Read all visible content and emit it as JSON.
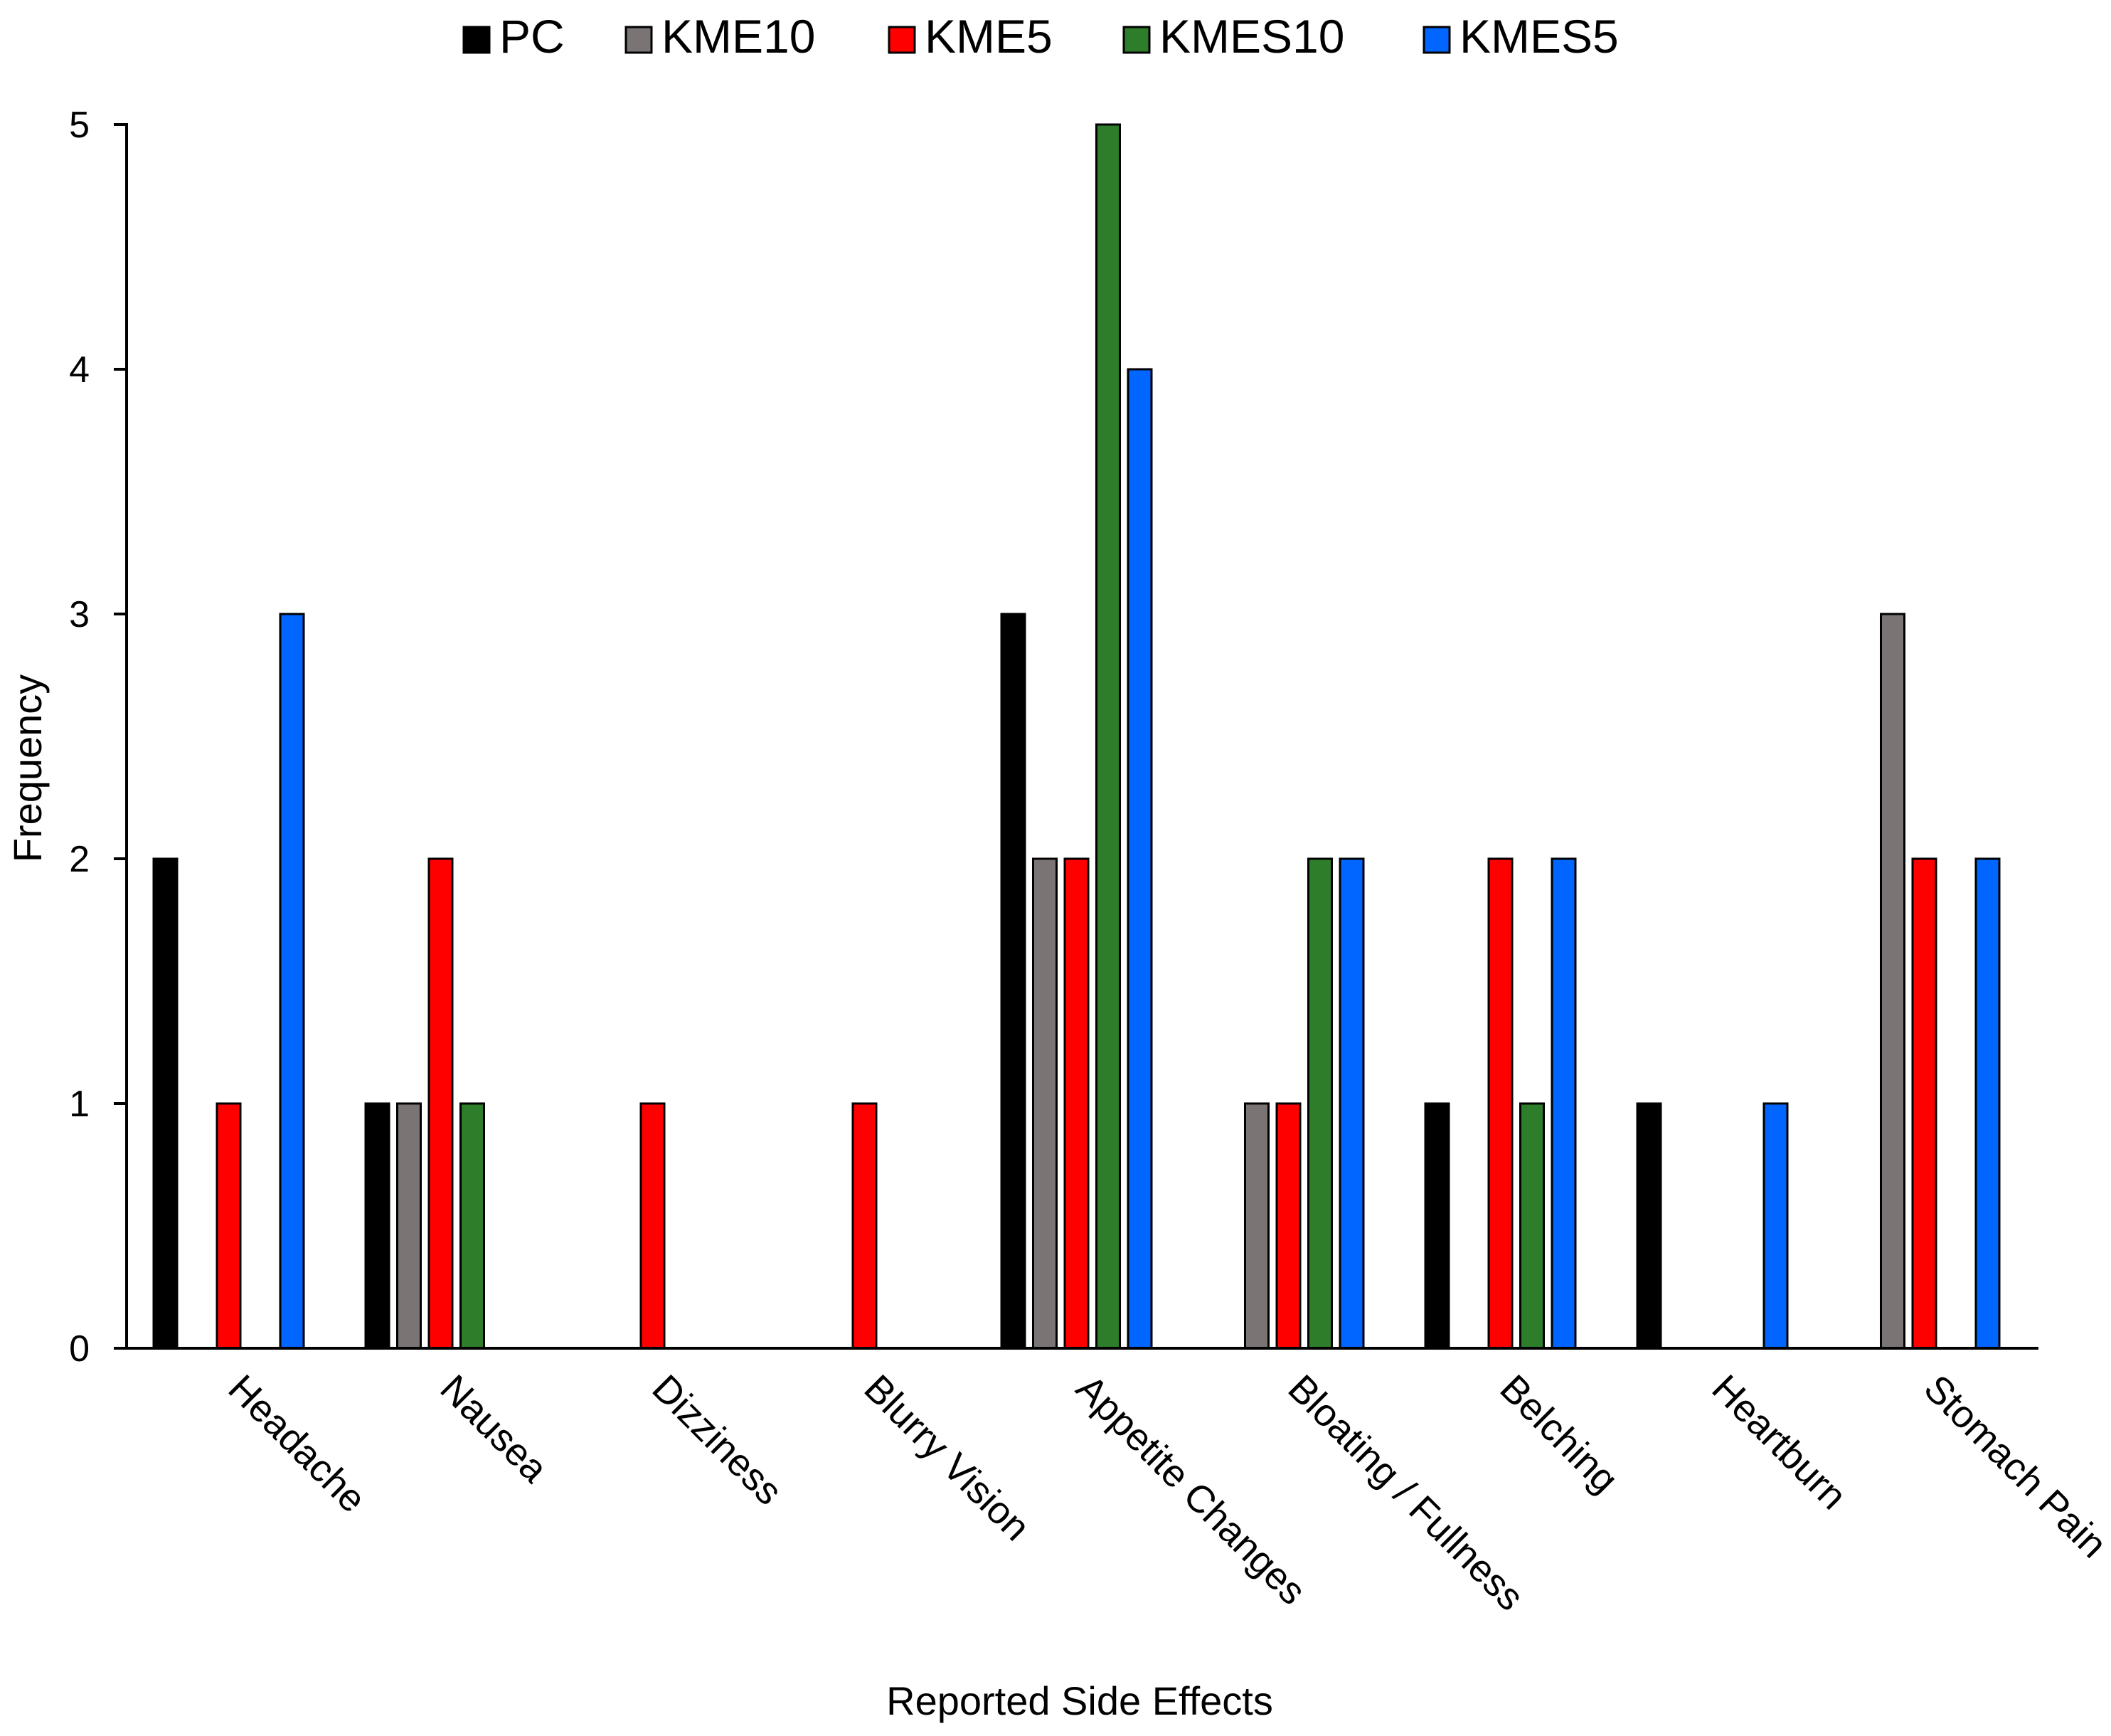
{
  "chart_data": {
    "type": "bar",
    "title": "",
    "xlabel": "Reported Side Effects",
    "ylabel": "Frequency",
    "ylim": [
      0,
      5
    ],
    "yticks": [
      0,
      1,
      2,
      3,
      4,
      5
    ],
    "grid": false,
    "legend_position": "top-center",
    "categories": [
      "Headache",
      "Nausea",
      "Dizziness",
      "Blurry Vision",
      "Appetite Changes",
      "Bloating / Fullness",
      "Belching",
      "Heartburn",
      "Stomach Pain"
    ],
    "series": [
      {
        "name": "PC",
        "color": "#000000",
        "values": [
          2,
          1,
          0,
          0,
          3,
          0,
          1,
          1,
          0
        ]
      },
      {
        "name": "KME10",
        "color": "#7a7474",
        "values": [
          0,
          1,
          0,
          0,
          2,
          1,
          0,
          0,
          3
        ]
      },
      {
        "name": "KME5",
        "color": "#ff0000",
        "values": [
          1,
          2,
          1,
          1,
          2,
          1,
          2,
          0,
          2
        ]
      },
      {
        "name": "KMES10",
        "color": "#2e7d2a",
        "values": [
          0,
          1,
          0,
          0,
          5,
          2,
          1,
          0,
          0
        ]
      },
      {
        "name": "KMES5",
        "color": "#0066ff",
        "values": [
          3,
          0,
          0,
          0,
          4,
          2,
          2,
          1,
          2
        ]
      }
    ]
  }
}
